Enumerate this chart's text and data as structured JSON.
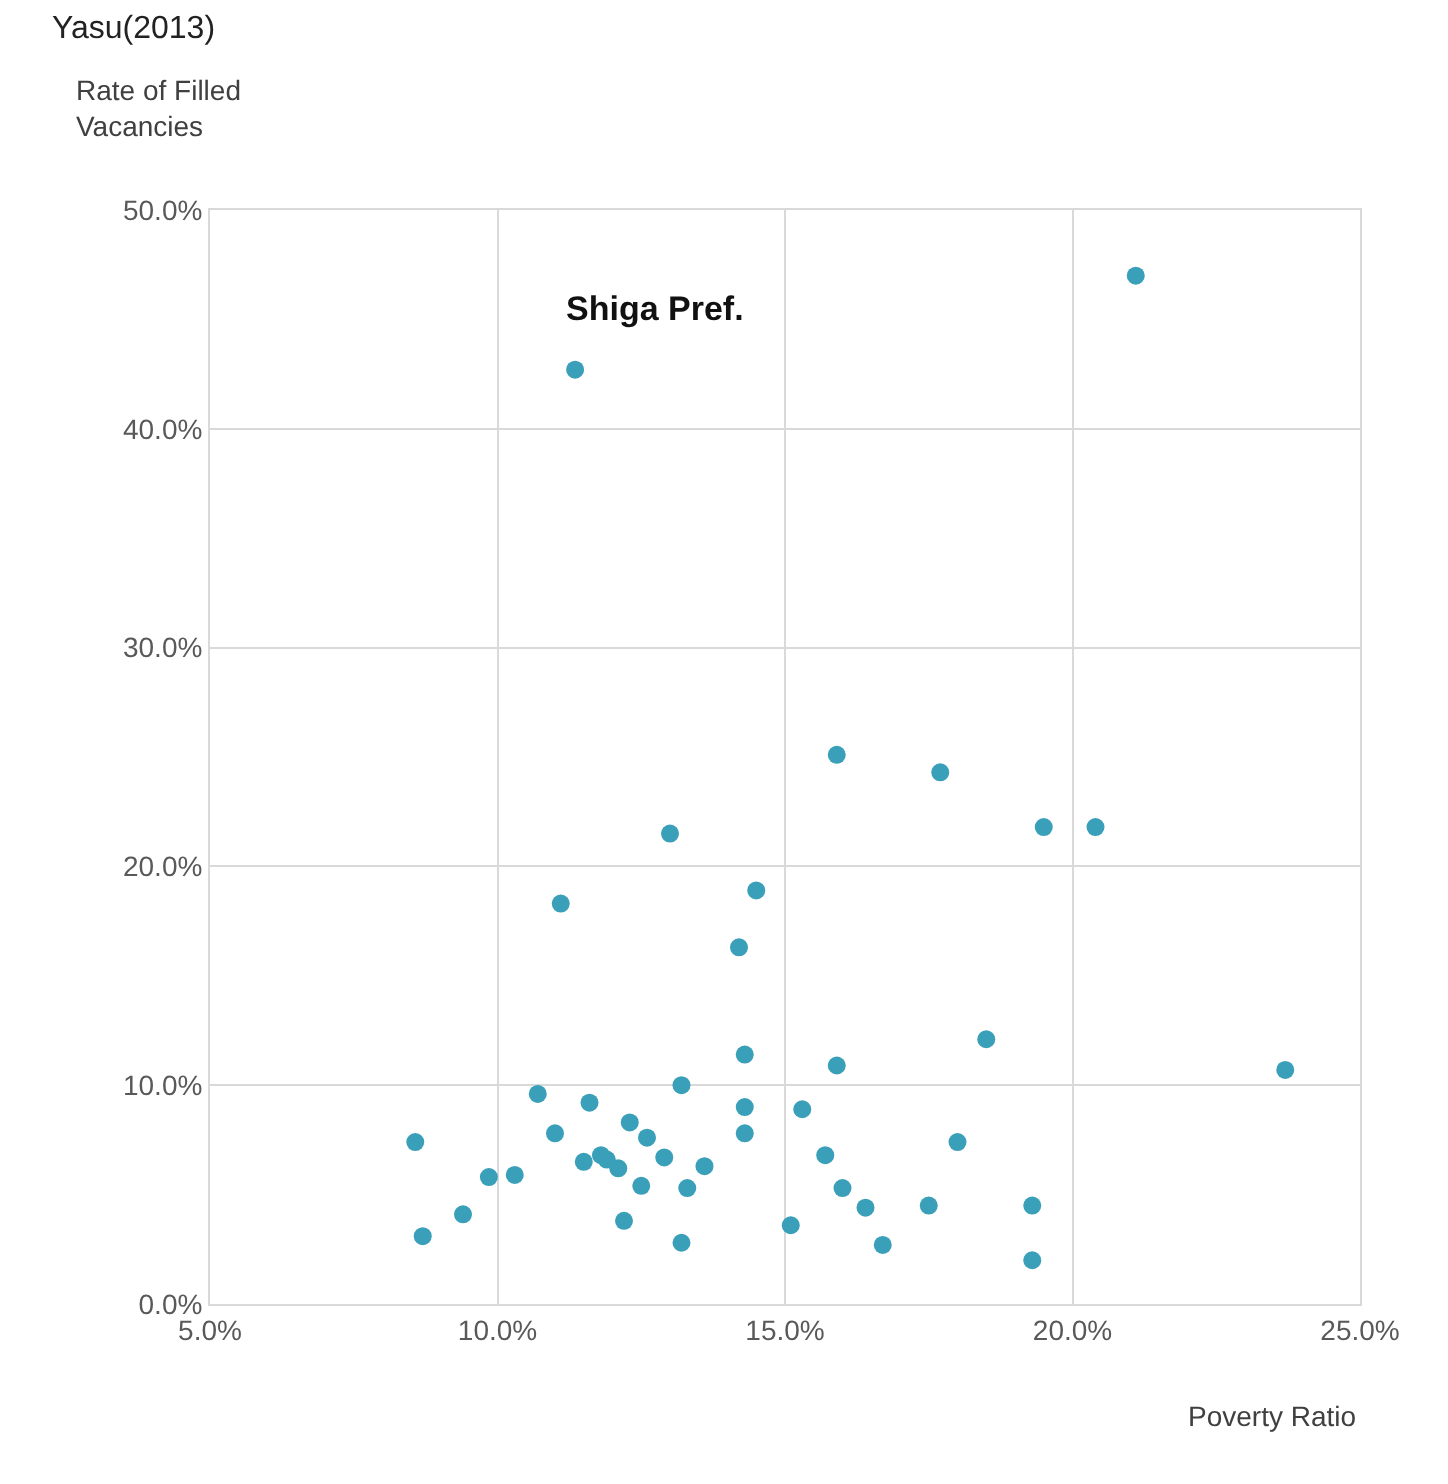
{
  "chart_data": {
    "type": "scatter",
    "xlabel": "Poverty Ratio",
    "ylabel": "Rate of Filled Vacancies",
    "x": [
      11.35,
      21.1,
      15.9,
      17.7,
      19.5,
      20.4,
      13.0,
      14.5,
      11.1,
      14.2,
      8.57,
      8.7,
      9.4,
      9.85,
      10.3,
      10.7,
      11.0,
      11.5,
      11.6,
      11.8,
      11.9,
      12.1,
      12.2,
      12.3,
      12.5,
      12.6,
      12.9,
      13.2,
      13.2,
      13.3,
      13.6,
      14.3,
      14.3,
      14.3,
      15.1,
      15.3,
      15.9,
      15.7,
      16.0,
      16.4,
      16.7,
      17.5,
      18.0,
      18.5,
      19.3,
      19.3,
      23.7
    ],
    "values": [
      42.7,
      47.0,
      25.1,
      24.3,
      21.8,
      21.8,
      21.5,
      18.9,
      18.3,
      16.3,
      7.4,
      3.1,
      4.1,
      5.8,
      5.9,
      9.6,
      7.8,
      6.5,
      9.2,
      6.8,
      6.6,
      6.2,
      3.8,
      8.3,
      5.4,
      7.6,
      6.7,
      10.0,
      2.8,
      5.3,
      6.3,
      11.4,
      9.0,
      7.8,
      3.6,
      8.9,
      10.9,
      6.8,
      5.3,
      4.4,
      2.7,
      4.5,
      7.4,
      12.1,
      4.5,
      2.0,
      10.7
    ],
    "color": "#3a9fb8",
    "marker": "circle",
    "xlim": [
      5,
      25
    ],
    "xticks": [
      {
        "value": 5,
        "label": "5.0%"
      },
      {
        "value": 10,
        "label": "10.0%"
      },
      {
        "value": 15,
        "label": "15.0%"
      },
      {
        "value": 20,
        "label": "20.0%"
      },
      {
        "value": 25,
        "label": "25.0%"
      }
    ],
    "ylim": [
      0,
      50
    ],
    "yticks": [
      {
        "value": 0,
        "label": "0.0%"
      },
      {
        "value": 10,
        "label": "10.0%"
      },
      {
        "value": 20,
        "label": "20.0%"
      },
      {
        "value": 30,
        "label": "30.0%"
      },
      {
        "value": 40,
        "label": "40.0%"
      },
      {
        "value": 50,
        "label": "50.0%"
      }
    ],
    "grid": true,
    "legend": false,
    "annotations": [
      "Yasu(2013)",
      {
        "text": "Shiga Pref.",
        "x": 11.35,
        "y": 42.7
      }
    ]
  }
}
